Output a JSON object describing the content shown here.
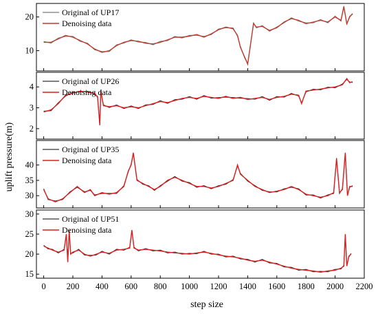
{
  "chart_data": {
    "type": "line",
    "xlabel": "step size",
    "ylabel": "uplift pressure(m)",
    "xlim": [
      -50,
      2200
    ],
    "xticks": [
      0,
      200,
      400,
      600,
      800,
      1000,
      1200,
      1400,
      1600,
      1800,
      2000,
      2200
    ],
    "panels": [
      {
        "ylim": [
          4,
          24
        ],
        "yticks": [
          10,
          20
        ],
        "series": [
          {
            "name": "Original of UP17",
            "color": "#7a7a7a"
          },
          {
            "name": "Denoising data",
            "color": "#c0392b"
          }
        ],
        "x": [
          0,
          50,
          100,
          150,
          200,
          250,
          300,
          350,
          400,
          450,
          500,
          550,
          600,
          650,
          700,
          750,
          800,
          850,
          900,
          950,
          1000,
          1050,
          1100,
          1150,
          1200,
          1250,
          1300,
          1330,
          1350,
          1380,
          1400,
          1420,
          1440,
          1460,
          1500,
          1550,
          1600,
          1650,
          1700,
          1750,
          1800,
          1850,
          1900,
          1950,
          2000,
          2040,
          2060,
          2080,
          2100,
          2120
        ],
        "values": [
          12.5,
          12.5,
          13.5,
          14.5,
          14,
          13,
          12,
          10.5,
          9.5,
          10,
          11.5,
          12.5,
          13,
          12.8,
          12.2,
          12,
          12.5,
          13.2,
          14,
          14,
          14.3,
          14.8,
          14,
          15,
          16.2,
          17,
          16.5,
          14.5,
          11,
          8,
          6,
          12,
          18,
          17,
          17.2,
          16,
          16.8,
          18.5,
          19.5,
          19,
          18,
          18.5,
          19,
          18.5,
          20,
          19,
          23,
          18,
          20,
          21
        ]
      },
      {
        "ylim": [
          1.5,
          4.7
        ],
        "yticks": [
          2,
          3,
          4
        ],
        "series": [
          {
            "name": "Original of UP26",
            "color": "#333333"
          },
          {
            "name": "Denoising data",
            "color": "#dd1f1f"
          }
        ],
        "x": [
          0,
          50,
          100,
          150,
          200,
          250,
          300,
          350,
          370,
          385,
          392,
          400,
          410,
          450,
          500,
          550,
          600,
          650,
          700,
          750,
          800,
          850,
          900,
          950,
          1000,
          1050,
          1100,
          1150,
          1200,
          1250,
          1300,
          1350,
          1400,
          1450,
          1500,
          1550,
          1600,
          1650,
          1700,
          1750,
          1770,
          1800,
          1850,
          1900,
          1950,
          2000,
          2050,
          2080,
          2100,
          2120
        ],
        "values": [
          2.8,
          2.9,
          3.2,
          3.6,
          3.7,
          3.8,
          3.75,
          3.7,
          3.5,
          2.2,
          3.8,
          3.5,
          3.1,
          3.05,
          3.1,
          3.0,
          3.05,
          3.0,
          3.1,
          3.2,
          3.3,
          3.25,
          3.35,
          3.45,
          3.5,
          3.45,
          3.55,
          3.5,
          3.45,
          3.55,
          3.45,
          3.5,
          3.4,
          3.45,
          3.5,
          3.4,
          3.5,
          3.55,
          3.65,
          3.6,
          3.2,
          3.8,
          3.85,
          3.9,
          3.95,
          4.0,
          4.1,
          4.4,
          4.2,
          4.25
        ]
      },
      {
        "ylim": [
          26,
          48
        ],
        "yticks": [
          30,
          35,
          40
        ],
        "series": [
          {
            "name": "Original of UP35",
            "color": "#333333"
          },
          {
            "name": "Denoising data",
            "color": "#dd1f1f"
          }
        ],
        "x": [
          0,
          30,
          80,
          130,
          180,
          230,
          280,
          320,
          350,
          400,
          450,
          500,
          550,
          580,
          600,
          615,
          640,
          680,
          720,
          760,
          800,
          850,
          900,
          950,
          1000,
          1050,
          1100,
          1150,
          1200,
          1250,
          1300,
          1330,
          1350,
          1400,
          1450,
          1500,
          1550,
          1600,
          1650,
          1700,
          1750,
          1800,
          1850,
          1900,
          1950,
          1990,
          2010,
          2030,
          2050,
          2070,
          2085,
          2100,
          2120
        ],
        "values": [
          32,
          29,
          28,
          29,
          31,
          33,
          31,
          32,
          30,
          31,
          30.5,
          31,
          33,
          38,
          40,
          44,
          35,
          34,
          33,
          32,
          33,
          35,
          36,
          35,
          34,
          33,
          33,
          32.5,
          33,
          34,
          35,
          40,
          37,
          35,
          33,
          32,
          31,
          31.5,
          32,
          33,
          32,
          30.5,
          30,
          29.5,
          30,
          31,
          42,
          31,
          32,
          44,
          30,
          33,
          33
        ]
      },
      {
        "ylim": [
          14,
          31
        ],
        "yticks": [
          15,
          20,
          25,
          30
        ],
        "series": [
          {
            "name": "Original of UP51",
            "color": "#333333"
          },
          {
            "name": "Denoising data",
            "color": "#dd1f1f"
          }
        ],
        "x": [
          0,
          30,
          60,
          100,
          140,
          155,
          165,
          175,
          185,
          200,
          240,
          280,
          320,
          360,
          400,
          450,
          500,
          550,
          590,
          605,
          620,
          650,
          700,
          750,
          800,
          850,
          900,
          950,
          1000,
          1050,
          1100,
          1150,
          1200,
          1250,
          1300,
          1350,
          1400,
          1450,
          1500,
          1550,
          1600,
          1650,
          1700,
          1750,
          1800,
          1850,
          1900,
          1950,
          2000,
          2040,
          2060,
          2070,
          2080,
          2095,
          2110
        ],
        "values": [
          22,
          21.5,
          21,
          20.5,
          21,
          25,
          18,
          26,
          20,
          20.5,
          21,
          20,
          19.5,
          20,
          20.5,
          20.2,
          21,
          21.2,
          21.5,
          26,
          21.5,
          21,
          21.2,
          21,
          20.8,
          20.5,
          20.3,
          20.2,
          20,
          20.3,
          20.5,
          20.2,
          19.8,
          19.5,
          19.3,
          19,
          18.5,
          18.2,
          18.5,
          18.0,
          17.5,
          17.0,
          16.5,
          16.2,
          16.0,
          15.8,
          15.5,
          15.8,
          16.0,
          16.5,
          17,
          25,
          17,
          19.5,
          20
        ]
      }
    ]
  }
}
